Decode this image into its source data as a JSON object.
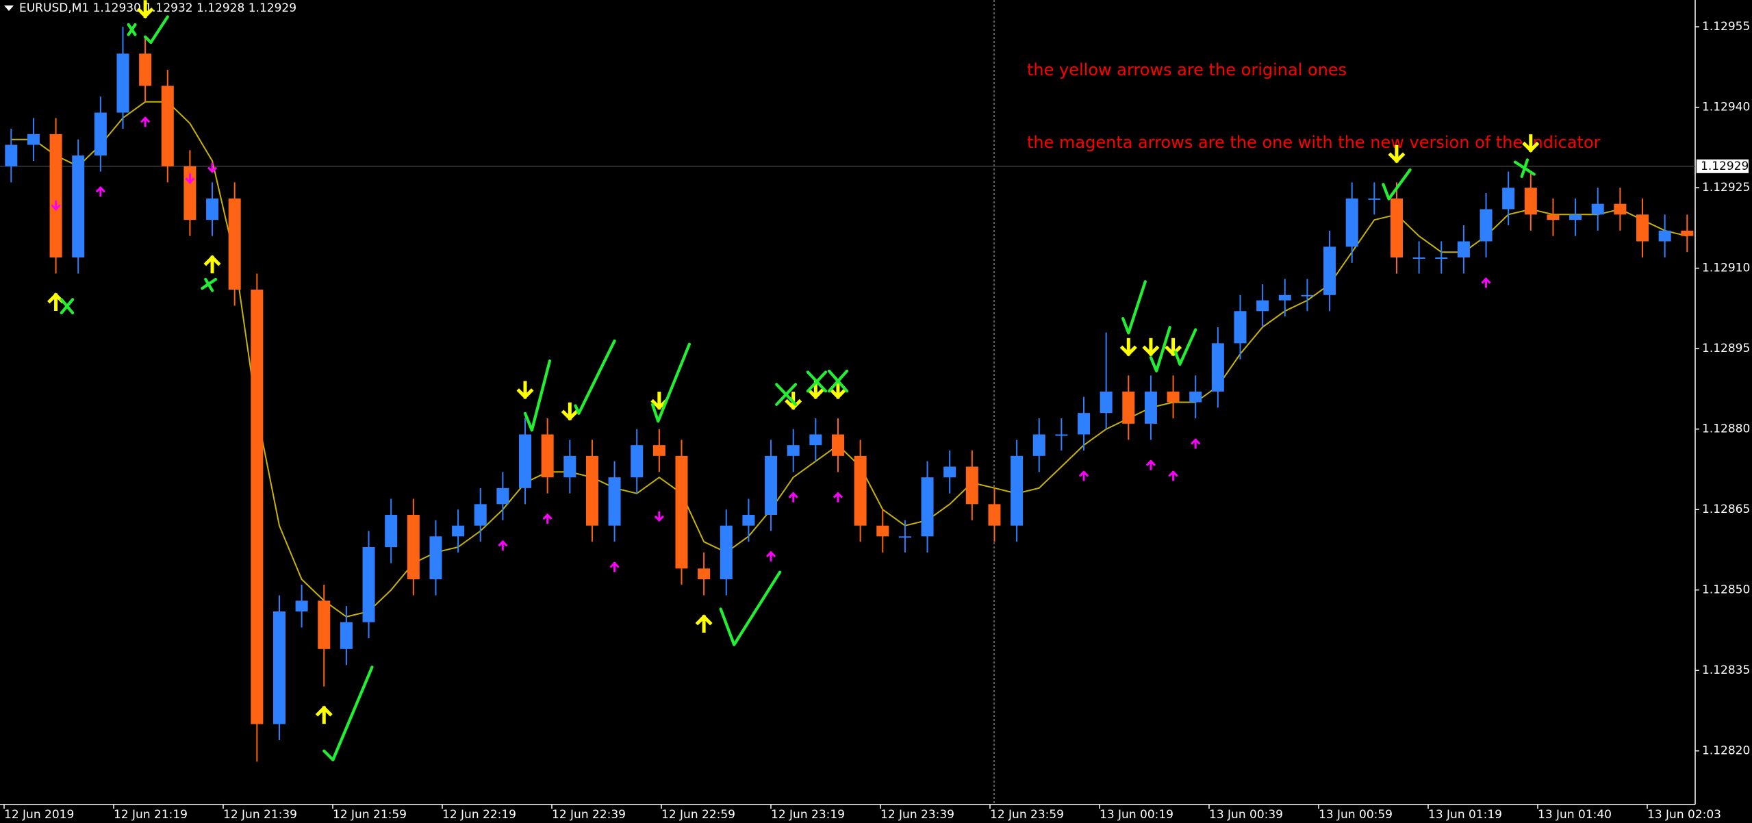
{
  "chart_data": {
    "type": "candlestick",
    "title": "EURUSD,M1  1.12930 1.12932 1.12928 1.12929",
    "annotations": [
      "the yellow arrows are the original ones",
      "the magenta arrows are the one with the new version of the indicator"
    ],
    "x_labels": [
      "12 Jun 2019",
      "12 Jun 21:19",
      "12 Jun 21:39",
      "12 Jun 21:59",
      "12 Jun 22:19",
      "12 Jun 22:39",
      "12 Jun 22:59",
      "12 Jun 23:19",
      "12 Jun 23:39",
      "12 Jun 23:59",
      "13 Jun 00:19",
      "13 Jun 00:39",
      "13 Jun 00:59",
      "13 Jun 01:19",
      "13 Jun 01:40",
      "13 Jun 02:03"
    ],
    "up_color": "#2f80ff",
    "down_color": "#ff6414",
    "open": [
      1.12929,
      1.12933,
      1.12935,
      1.12912,
      1.12931,
      1.12939,
      1.1295,
      1.12944,
      1.12929,
      1.12919,
      1.12923,
      1.12906,
      1.12825,
      1.12846,
      1.12848,
      1.12839,
      1.12844,
      1.12858,
      1.12864,
      1.12852,
      1.1286,
      1.12862,
      1.12866,
      1.12869,
      1.12879,
      1.12871,
      1.12875,
      1.12862,
      1.12871,
      1.12877,
      1.12875,
      1.12854,
      1.12852,
      1.12862,
      1.12864,
      1.12875,
      1.12877,
      1.12879,
      1.12875,
      1.12862,
      1.1286,
      1.1286,
      1.12871,
      1.12873,
      1.12866,
      1.12862,
      1.12875,
      1.12879,
      1.12879,
      1.12883,
      1.12887,
      1.12881,
      1.12887,
      1.12885,
      1.12887,
      1.12896,
      1.12902,
      1.12904,
      1.12905,
      1.12905,
      1.12914,
      1.12923,
      1.12923,
      1.12912,
      1.12912,
      1.12912,
      1.12915,
      1.12921,
      1.12925,
      1.1292,
      1.12919,
      1.1292,
      1.12922,
      1.1292,
      1.12915,
      1.12917
    ],
    "high": [
      1.12936,
      1.12938,
      1.12938,
      1.12934,
      1.12942,
      1.12955,
      1.12953,
      1.12947,
      1.12932,
      1.12926,
      1.12926,
      1.12909,
      1.12849,
      1.12851,
      1.12851,
      1.12847,
      1.12861,
      1.12867,
      1.12867,
      1.12863,
      1.12865,
      1.12869,
      1.12872,
      1.12882,
      1.12882,
      1.12878,
      1.12878,
      1.12874,
      1.1288,
      1.1288,
      1.12878,
      1.12857,
      1.12865,
      1.12867,
      1.12878,
      1.1288,
      1.12882,
      1.12882,
      1.12878,
      1.12865,
      1.12863,
      1.12874,
      1.12876,
      1.12876,
      1.12869,
      1.12878,
      1.12882,
      1.12882,
      1.12886,
      1.12898,
      1.1289,
      1.1289,
      1.1289,
      1.1289,
      1.12899,
      1.12905,
      1.12907,
      1.12908,
      1.12908,
      1.12917,
      1.12926,
      1.12926,
      1.12926,
      1.12915,
      1.12915,
      1.12918,
      1.12924,
      1.12928,
      1.12928,
      1.12923,
      1.12923,
      1.12925,
      1.12925,
      1.12923,
      1.1292,
      1.1292
    ],
    "low": [
      1.12926,
      1.1293,
      1.12909,
      1.12909,
      1.12928,
      1.12936,
      1.12941,
      1.12926,
      1.12916,
      1.12916,
      1.12903,
      1.12818,
      1.12822,
      1.12843,
      1.12832,
      1.12836,
      1.12841,
      1.12855,
      1.12849,
      1.12849,
      1.12857,
      1.12859,
      1.12863,
      1.12866,
      1.12868,
      1.12868,
      1.12859,
      1.12859,
      1.12868,
      1.12872,
      1.12851,
      1.12849,
      1.12849,
      1.12859,
      1.12861,
      1.12872,
      1.12874,
      1.12872,
      1.12859,
      1.12857,
      1.12857,
      1.12857,
      1.12868,
      1.12863,
      1.12859,
      1.12859,
      1.12872,
      1.12876,
      1.12876,
      1.1288,
      1.12878,
      1.12878,
      1.12882,
      1.12882,
      1.12884,
      1.12893,
      1.12899,
      1.12901,
      1.12902,
      1.12902,
      1.12911,
      1.1292,
      1.12909,
      1.12909,
      1.12909,
      1.12909,
      1.12912,
      1.12918,
      1.12917,
      1.12916,
      1.12916,
      1.12917,
      1.12917,
      1.12912,
      1.12912,
      1.12913
    ],
    "close": [
      1.12933,
      1.12935,
      1.12912,
      1.12931,
      1.12939,
      1.1295,
      1.12944,
      1.12929,
      1.12919,
      1.12923,
      1.12906,
      1.12825,
      1.12846,
      1.12848,
      1.12839,
      1.12844,
      1.12858,
      1.12864,
      1.12852,
      1.1286,
      1.12862,
      1.12866,
      1.12869,
      1.12879,
      1.12871,
      1.12875,
      1.12862,
      1.12871,
      1.12877,
      1.12875,
      1.12854,
      1.12852,
      1.12862,
      1.12864,
      1.12875,
      1.12877,
      1.12879,
      1.12875,
      1.12862,
      1.1286,
      1.1286,
      1.12871,
      1.12873,
      1.12866,
      1.12862,
      1.12875,
      1.12879,
      1.12879,
      1.12883,
      1.12887,
      1.12881,
      1.12887,
      1.12885,
      1.12887,
      1.12896,
      1.12902,
      1.12904,
      1.12905,
      1.12905,
      1.12914,
      1.12923,
      1.12923,
      1.12912,
      1.12912,
      1.12912,
      1.12915,
      1.12921,
      1.12925,
      1.1292,
      1.12919,
      1.1292,
      1.12922,
      1.1292,
      1.12915,
      1.12917,
      1.12916
    ],
    "moving_average": {
      "color": "#c8b400",
      "values": [
        1.12934,
        1.12934,
        1.12931,
        1.12929,
        1.12933,
        1.12938,
        1.12941,
        1.12941,
        1.12937,
        1.1293,
        1.12912,
        1.12883,
        1.12862,
        1.12852,
        1.12848,
        1.12845,
        1.12846,
        1.1285,
        1.12855,
        1.12857,
        1.12858,
        1.12861,
        1.12865,
        1.1287,
        1.12872,
        1.12872,
        1.12871,
        1.12869,
        1.12868,
        1.12871,
        1.12868,
        1.12859,
        1.12857,
        1.1286,
        1.12865,
        1.12871,
        1.12874,
        1.12877,
        1.12873,
        1.12865,
        1.12862,
        1.12863,
        1.12866,
        1.1287,
        1.12869,
        1.12868,
        1.12869,
        1.12873,
        1.12877,
        1.1288,
        1.12882,
        1.12884,
        1.12885,
        1.12885,
        1.12888,
        1.12894,
        1.12899,
        1.12902,
        1.12904,
        1.12907,
        1.12913,
        1.12919,
        1.1292,
        1.12916,
        1.12913,
        1.12913,
        1.12916,
        1.1292,
        1.12921,
        1.1292,
        1.1292,
        1.1292,
        1.12921,
        1.12919,
        1.12917,
        1.12916
      ]
    },
    "arrows": [
      {
        "direction": "up",
        "color": "#ffff00",
        "values": [
          null,
          null,
          1.12905,
          null,
          null,
          null,
          null,
          null,
          null,
          1.12912,
          null,
          null,
          null,
          null,
          1.12828,
          null,
          null,
          null,
          null,
          null,
          null,
          null,
          null,
          null,
          null,
          null,
          null,
          null,
          null,
          null,
          null,
          1.12845,
          null,
          null,
          null,
          null,
          null,
          null,
          null,
          null,
          null,
          null,
          null,
          null,
          null,
          null,
          null,
          null,
          null,
          null,
          null,
          null,
          null,
          null,
          null,
          null,
          null,
          null,
          null,
          null,
          null,
          null,
          null,
          null,
          null,
          null,
          null,
          null,
          null,
          null,
          null,
          null,
          null,
          null,
          null,
          null
        ]
      },
      {
        "direction": "down",
        "color": "#ffff00",
        "values": [
          null,
          null,
          null,
          null,
          null,
          null,
          1.12957,
          null,
          null,
          null,
          null,
          null,
          null,
          null,
          null,
          null,
          null,
          null,
          null,
          null,
          null,
          null,
          null,
          1.12886,
          null,
          1.12882,
          null,
          null,
          null,
          1.12884,
          null,
          null,
          null,
          null,
          null,
          1.12884,
          1.12886,
          1.12886,
          null,
          null,
          null,
          null,
          null,
          null,
          null,
          null,
          null,
          null,
          null,
          null,
          1.12894,
          1.12894,
          1.12894,
          null,
          null,
          null,
          null,
          null,
          null,
          null,
          null,
          null,
          1.1293,
          null,
          null,
          null,
          null,
          null,
          1.12932,
          null,
          null,
          null,
          null,
          null,
          null,
          null
        ]
      },
      {
        "direction": "up",
        "color": "#ff00ff",
        "values": [
          null,
          null,
          null,
          null,
          1.12925,
          null,
          1.12938,
          null,
          null,
          null,
          null,
          null,
          null,
          null,
          null,
          null,
          null,
          null,
          null,
          null,
          null,
          null,
          1.12859,
          null,
          1.12864,
          null,
          null,
          1.12855,
          null,
          null,
          null,
          null,
          null,
          null,
          1.12857,
          1.12868,
          null,
          1.12868,
          null,
          null,
          null,
          null,
          null,
          null,
          null,
          null,
          null,
          null,
          1.12872,
          null,
          null,
          1.12874,
          1.12872,
          1.12878,
          null,
          null,
          null,
          null,
          null,
          null,
          null,
          null,
          null,
          null,
          null,
          null,
          1.12908,
          null,
          null,
          null,
          null,
          null,
          null,
          null,
          null,
          null
        ]
      },
      {
        "direction": "down",
        "color": "#ff00ff",
        "values": [
          null,
          null,
          1.12921,
          null,
          null,
          null,
          null,
          null,
          1.12926,
          1.12928,
          null,
          null,
          null,
          null,
          null,
          null,
          null,
          null,
          null,
          null,
          null,
          null,
          null,
          null,
          null,
          null,
          null,
          null,
          null,
          1.12863,
          null,
          null,
          null,
          null,
          null,
          null,
          null,
          null,
          null,
          null,
          null,
          null,
          null,
          null,
          null,
          null,
          null,
          null,
          null,
          null,
          null,
          null,
          null,
          null,
          null,
          null,
          null,
          null,
          null,
          null,
          null,
          null,
          null,
          null,
          null,
          null,
          null,
          null,
          null,
          null,
          null,
          null,
          null,
          null,
          null,
          null
        ]
      }
    ],
    "current_price": {
      "value": 1.12929
    },
    "ylim": [
      1.1281,
      1.1296
    ],
    "yticks": [
      1.12955,
      {
        "value": 1.1294,
        "label": "1.12940"
      },
      1.12925,
      {
        "value": 1.1291,
        "label": "1.12910"
      },
      1.12895,
      {
        "value": 1.1288,
        "label": "1.12880"
      },
      1.12865,
      {
        "value": 1.1285,
        "label": "1.12850"
      },
      1.12835,
      {
        "value": 1.1282,
        "label": "1.12820"
      }
    ]
  }
}
